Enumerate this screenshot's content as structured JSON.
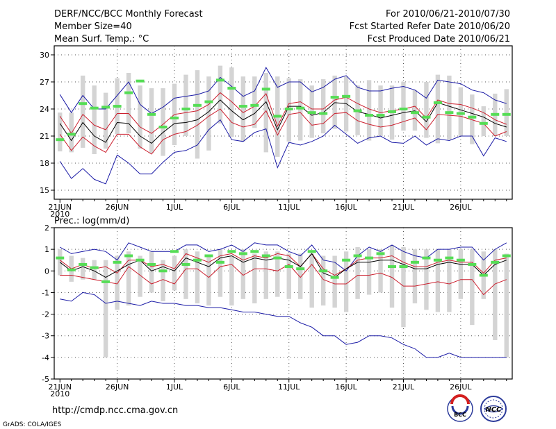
{
  "header": {
    "title": "DERF/NCC/BCC Monthly Forecast",
    "member": "Member Size=40",
    "period": "For 2010/06/21-2010/07/30",
    "started": "Fcst Started Refer Date 2010/06/20",
    "produced": "Fcst Produced Date 2010/06/21"
  },
  "footer": {
    "url": "http://cmdp.ncc.cma.gov.cn",
    "credit": "GrADS: COLA/IGES",
    "logo1_text": "BCC",
    "logo2_text": "NCC"
  },
  "colors": {
    "envelope": "#1a1aa6",
    "spread": "#cc1f2e",
    "median": "#000000",
    "mean_bar": "#55dd55",
    "range_bar": "#d4d4d4"
  },
  "chart_data": [
    {
      "type": "line",
      "name": "temperature",
      "label": "Mean Surf. Temp.: °C",
      "ylim": [
        14,
        31
      ],
      "yticks": [
        15,
        18,
        21,
        24,
        27,
        30
      ],
      "x_tick_days": [
        0,
        5,
        10,
        15,
        20,
        25,
        30,
        35
      ],
      "x_tick_labels": [
        "21JUN",
        "26JUN",
        "1JUL",
        "6JUL",
        "11JUL",
        "16JUL",
        "21JUL",
        "26JUL"
      ],
      "x_year_label": "2010",
      "days": 40,
      "series": [
        {
          "name": "upper",
          "values": [
            25.6,
            23.6,
            25.5,
            24.0,
            24.0,
            25.5,
            27.0,
            24.5,
            23.5,
            24.2,
            25.2,
            25.4,
            25.6,
            26.0,
            27.5,
            26.5,
            25.4,
            26.0,
            28.6,
            26.4,
            27.0,
            27.0,
            25.9,
            26.4,
            27.3,
            27.7,
            26.4,
            26.0,
            26.0,
            26.3,
            26.5,
            26.1,
            25.2,
            27.2,
            27.0,
            26.8,
            26.1,
            25.8,
            25.0,
            24.6
          ]
        },
        {
          "name": "upper_mid",
          "values": [
            23.2,
            21.3,
            23.4,
            22.2,
            21.7,
            23.5,
            23.5,
            22.0,
            21.3,
            22.3,
            23.4,
            23.6,
            23.8,
            24.5,
            25.8,
            24.8,
            23.6,
            24.3,
            25.7,
            22.1,
            24.6,
            24.8,
            24.0,
            24.0,
            25.0,
            25.3,
            24.6,
            24.0,
            23.6,
            23.8,
            24.0,
            24.3,
            23.0,
            25.0,
            24.6,
            24.5,
            24.1,
            23.6,
            22.8,
            22.3
          ]
        },
        {
          "name": "median",
          "values": [
            22.4,
            20.5,
            22.5,
            21.0,
            20.3,
            22.5,
            22.4,
            21.0,
            20.2,
            21.4,
            22.4,
            22.5,
            22.8,
            23.7,
            25.0,
            23.8,
            22.8,
            23.5,
            24.8,
            21.7,
            24.3,
            24.3,
            23.3,
            23.6,
            24.7,
            24.6,
            23.7,
            23.4,
            23.0,
            23.3,
            23.6,
            23.8,
            22.6,
            24.7,
            24.3,
            23.9,
            23.5,
            23.1,
            22.4,
            22.0
          ]
        },
        {
          "name": "lower_mid",
          "values": [
            21.2,
            19.4,
            20.9,
            19.9,
            19.2,
            21.2,
            21.2,
            19.8,
            19.0,
            20.6,
            21.2,
            21.5,
            22.2,
            23.2,
            24.0,
            22.5,
            22.0,
            22.3,
            23.8,
            21.1,
            23.4,
            23.6,
            22.2,
            22.4,
            23.5,
            23.6,
            22.7,
            22.3,
            22.0,
            22.2,
            22.6,
            23.0,
            21.7,
            23.4,
            23.3,
            23.2,
            22.8,
            22.4,
            21.0,
            21.5
          ]
        },
        {
          "name": "lower",
          "values": [
            18.2,
            16.3,
            17.4,
            16.2,
            15.7,
            18.9,
            18.0,
            16.8,
            16.8,
            18.1,
            19.2,
            19.4,
            20.0,
            21.7,
            22.8,
            20.6,
            20.4,
            21.4,
            21.8,
            17.5,
            20.3,
            20.0,
            20.4,
            21.0,
            22.2,
            21.2,
            20.2,
            20.8,
            21.0,
            20.3,
            20.2,
            21.0,
            20.0,
            20.7,
            20.5,
            21.0,
            21.0,
            18.8,
            20.8,
            20.4
          ]
        },
        {
          "name": "ensemble_mean",
          "values": [
            20.6,
            21.2,
            24.6,
            24.1,
            24.2,
            24.3,
            25.8,
            27.1,
            23.4,
            22.0,
            23.0,
            24.0,
            24.4,
            24.8,
            27.2,
            26.3,
            24.3,
            24.4,
            26.2,
            23.2,
            24.0,
            24.1,
            23.6,
            23.5,
            25.3,
            25.4,
            23.8,
            23.3,
            23.3,
            23.7,
            24.0,
            23.6,
            23.1,
            24.7,
            23.6,
            23.5,
            23.1,
            22.4,
            23.4,
            23.4
          ]
        },
        {
          "name": "range_top",
          "values": [
            23.6,
            23.6,
            27.7,
            26.6,
            25.8,
            27.4,
            28.0,
            26.6,
            26.3,
            26.3,
            26.8,
            27.8,
            28.3,
            27.6,
            28.8,
            28.6,
            27.6,
            27.6,
            28.0,
            27.6,
            27.4,
            27.3,
            26.6,
            27.3,
            27.7,
            27.6,
            26.6,
            27.2,
            26.6,
            26.6,
            27.0,
            26.1,
            27.0,
            27.8,
            27.7,
            26.4,
            25.6,
            24.3,
            25.7,
            26.2
          ]
        },
        {
          "name": "range_bottom",
          "values": [
            19.3,
            19.2,
            19.7,
            19.0,
            19.6,
            21.2,
            21.3,
            19.6,
            19.1,
            18.8,
            20.0,
            21.0,
            18.5,
            19.4,
            22.4,
            20.9,
            20.4,
            21.9,
            19.2,
            18.7,
            20.4,
            20.5,
            20.8,
            21.3,
            21.8,
            21.5,
            21.1,
            20.5,
            21.0,
            20.6,
            21.6,
            21.6,
            20.8,
            20.2,
            20.6,
            21.0,
            20.1,
            21.0,
            21.0,
            21.0
          ]
        }
      ]
    },
    {
      "type": "line",
      "name": "precipitation",
      "label": "Prec.: log(mm/d)",
      "ylim": [
        -5,
        2
      ],
      "yticks": [
        -5,
        -4,
        -3,
        -2,
        -1,
        0,
        1,
        2
      ],
      "x_tick_days": [
        0,
        5,
        10,
        15,
        20,
        25,
        30,
        35
      ],
      "x_tick_labels": [
        "21JUN",
        "26JUN",
        "1JUL",
        "6JUL",
        "11JUL",
        "16JUL",
        "21JUL",
        "26JUL"
      ],
      "x_year_label": "2010",
      "days": 40,
      "series": [
        {
          "name": "upper",
          "values": [
            1.1,
            0.8,
            0.9,
            1.0,
            0.9,
            0.5,
            1.3,
            1.1,
            0.9,
            0.9,
            0.9,
            1.2,
            1.2,
            0.9,
            1.0,
            1.2,
            0.9,
            1.3,
            1.2,
            1.2,
            0.9,
            0.7,
            1.2,
            0.5,
            0.4,
            0.0,
            0.7,
            1.1,
            0.9,
            1.2,
            0.9,
            0.7,
            0.6,
            1.0,
            1.0,
            1.1,
            1.1,
            0.5,
            1.0,
            1.3
          ]
        },
        {
          "name": "upper_mid",
          "values": [
            0.5,
            0.1,
            0.3,
            0.1,
            0.2,
            -0.1,
            0.5,
            0.5,
            0.2,
            0.3,
            0.1,
            0.8,
            0.6,
            0.4,
            0.7,
            0.8,
            0.5,
            0.7,
            0.6,
            0.8,
            0.7,
            0.2,
            0.8,
            0.1,
            -0.2,
            0.1,
            0.5,
            0.6,
            0.6,
            0.7,
            0.4,
            0.2,
            0.2,
            0.4,
            0.5,
            0.4,
            0.4,
            -0.1,
            0.5,
            0.6
          ]
        },
        {
          "name": "median",
          "values": [
            0.4,
            0.0,
            0.2,
            0.0,
            -0.3,
            0.0,
            0.3,
            0.5,
            0.0,
            0.2,
            0.0,
            0.6,
            0.4,
            0.2,
            0.6,
            0.7,
            0.4,
            0.6,
            0.5,
            0.6,
            0.5,
            0.2,
            0.8,
            -0.1,
            -0.3,
            0.1,
            0.4,
            0.4,
            0.5,
            0.5,
            0.3,
            0.1,
            0.1,
            0.3,
            0.4,
            0.3,
            0.3,
            -0.2,
            0.3,
            0.5
          ]
        },
        {
          "name": "lower_mid",
          "values": [
            -0.2,
            -0.2,
            -0.3,
            -0.4,
            -0.5,
            -0.6,
            0.2,
            -0.2,
            -0.6,
            -0.4,
            -0.6,
            0.1,
            0.1,
            -0.3,
            0.2,
            0.3,
            -0.2,
            0.1,
            0.1,
            0.0,
            0.3,
            -0.3,
            0.3,
            -0.4,
            -0.6,
            -0.6,
            -0.2,
            -0.2,
            -0.1,
            -0.3,
            -0.7,
            -0.7,
            -0.6,
            -0.5,
            -0.6,
            -0.4,
            -0.4,
            -1.1,
            -0.6,
            -0.4
          ]
        },
        {
          "name": "lower",
          "values": [
            -1.3,
            -1.4,
            -1.0,
            -1.1,
            -1.5,
            -1.4,
            -1.5,
            -1.6,
            -1.4,
            -1.5,
            -1.5,
            -1.6,
            -1.6,
            -1.7,
            -1.7,
            -1.8,
            -1.9,
            -1.9,
            -2.0,
            -2.1,
            -2.1,
            -2.4,
            -2.6,
            -3.0,
            -3.0,
            -3.4,
            -3.3,
            -3.0,
            -3.0,
            -3.1,
            -3.4,
            -3.6,
            -4.0,
            -4.0,
            -3.8,
            -4.0,
            -4.0,
            -4.0,
            -4.0,
            -4.0
          ]
        },
        {
          "name": "ensemble_mean",
          "values": [
            0.6,
            0.05,
            0.3,
            0.15,
            -0.5,
            0.4,
            0.7,
            0.5,
            0.3,
            0.0,
            0.9,
            0.3,
            0.5,
            0.7,
            0.4,
            0.9,
            0.8,
            0.9,
            0.7,
            0.6,
            0.2,
            0.1,
            0.9,
            0.0,
            -0.3,
            0.5,
            0.7,
            0.6,
            0.8,
            0.2,
            0.2,
            0.4,
            0.6,
            0.5,
            0.6,
            0.5,
            0.3,
            -0.2,
            0.4,
            0.7
          ]
        },
        {
          "name": "range_top",
          "values": [
            1.0,
            0.7,
            0.6,
            0.5,
            0.5,
            0.7,
            0.9,
            0.7,
            0.9,
            0.5,
            0.7,
            1.0,
            0.9,
            0.7,
            1.0,
            0.7,
            1.0,
            0.8,
            0.9,
            0.9,
            0.8,
            0.8,
            0.8,
            0.7,
            0.7,
            0.9,
            1.1,
            1.0,
            1.0,
            1.2,
            1.1,
            1.0,
            1.0,
            1.0,
            1.0,
            1.0,
            1.0,
            0.9,
            1.0,
            0.8
          ]
        },
        {
          "name": "range_bottom",
          "values": [
            -0.2,
            -0.5,
            -0.4,
            -0.4,
            -4.0,
            -1.8,
            -1.6,
            -1.2,
            -1.0,
            -1.4,
            -0.9,
            -1.3,
            -1.5,
            -1.6,
            -1.2,
            -1.6,
            -1.3,
            -1.5,
            -1.3,
            -1.2,
            -1.3,
            -1.3,
            -1.7,
            -1.6,
            -1.7,
            -1.9,
            -1.3,
            -1.1,
            -1.0,
            -1.7,
            -2.6,
            -1.5,
            -1.8,
            -1.9,
            -1.9,
            -1.3,
            -2.5,
            -1.3,
            -3.2,
            -4.0
          ]
        }
      ]
    }
  ]
}
